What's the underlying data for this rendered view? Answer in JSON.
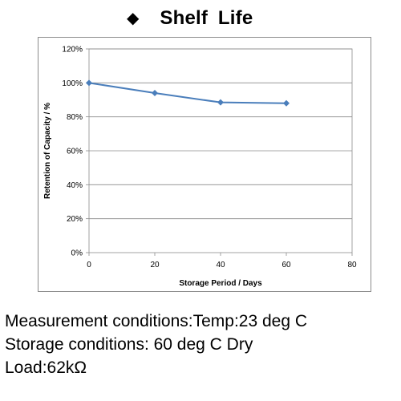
{
  "header": {
    "bullet_icon": "diamond-icon",
    "bullet_glyph": "◆",
    "title": "Shelf  Life"
  },
  "chart_data": {
    "type": "line",
    "title": "",
    "xlabel": "Storage Period / Days",
    "ylabel": "Retention of Capacity / %",
    "x": [
      0,
      20,
      40,
      60
    ],
    "series": [
      {
        "values": [
          100,
          94,
          88.5,
          88
        ]
      }
    ],
    "xlim": [
      0,
      80
    ],
    "ylim": [
      0,
      120
    ],
    "xticks": [
      0,
      20,
      40,
      60,
      80
    ],
    "yticks": [
      0,
      20,
      40,
      60,
      80,
      100,
      120
    ],
    "ytick_labels": [
      "0%",
      "20%",
      "40%",
      "60%",
      "80%",
      "100%",
      "120%"
    ],
    "grid": "horizontal",
    "legend": "none",
    "line_color": "#4a7ebb"
  },
  "notes": {
    "measurement": "Measurement conditions:Temp:23 deg C",
    "storage": "Storage conditions: 60 deg C Dry",
    "load": "Load:62kΩ"
  }
}
